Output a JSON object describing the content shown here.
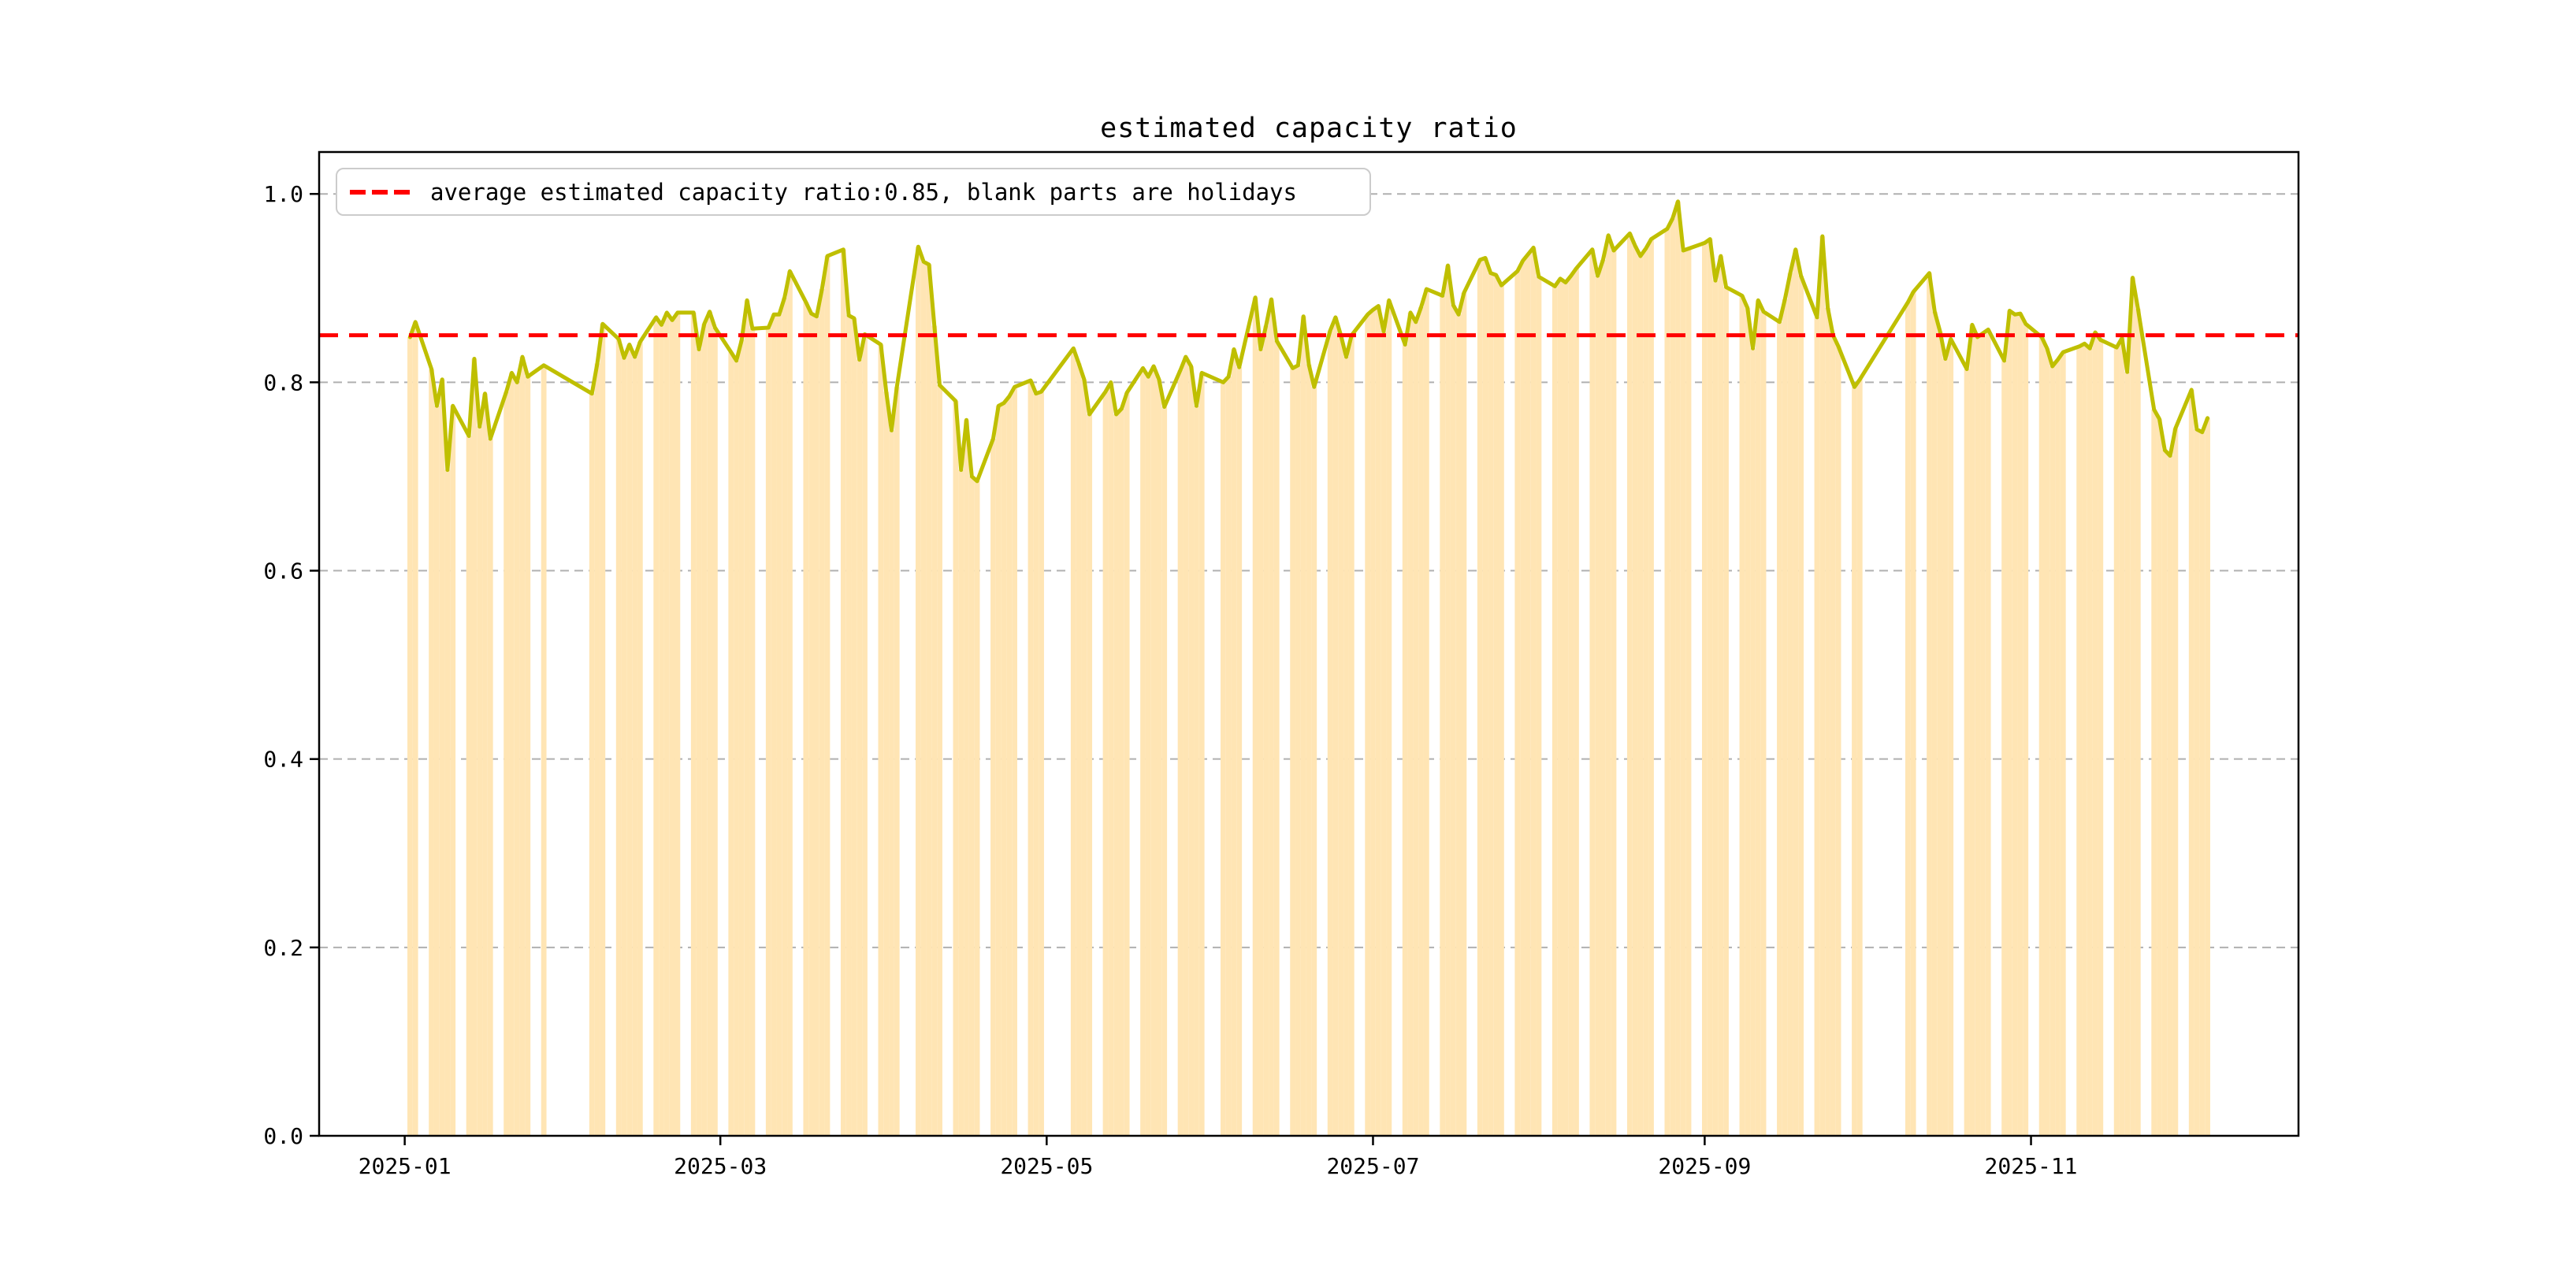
{
  "title": "estimated capacity ratio",
  "legend": {
    "label": "average estimated capacity ratio:0.85, blank parts are holidays"
  },
  "colors": {
    "bar_fill": "#ffe5b4",
    "line": "#bfbf00",
    "average_line": "#ff0000",
    "grid": "#b0b0b0",
    "axis": "#000000",
    "legend_border": "#cccccc",
    "background": "#ffffff"
  },
  "chart_data": {
    "type": "bar",
    "title": "estimated capacity ratio",
    "xlabel": "",
    "ylabel": "",
    "average_line_value": 0.85,
    "ylim": [
      0,
      1.0445
    ],
    "xlim": [
      "2024-12-16",
      "2025-12-21"
    ],
    "grid": "horizontal-dashed",
    "legend_position": "upper left",
    "y_ticks": [
      {
        "label": "0.0",
        "value": 0.0
      },
      {
        "label": "0.2",
        "value": 0.2
      },
      {
        "label": "0.4",
        "value": 0.4
      },
      {
        "label": "0.6",
        "value": 0.6
      },
      {
        "label": "0.8",
        "value": 0.8
      },
      {
        "label": "1.0",
        "value": 1.0
      }
    ],
    "x_ticks": [
      {
        "label": "2025-01",
        "date": "2025-01-01"
      },
      {
        "label": "2025-03",
        "date": "2025-03-01"
      },
      {
        "label": "2025-05",
        "date": "2025-05-01"
      },
      {
        "label": "2025-07",
        "date": "2025-07-01"
      },
      {
        "label": "2025-09",
        "date": "2025-09-01"
      },
      {
        "label": "2025-11",
        "date": "2025-11-01"
      }
    ],
    "series_note_visible": "blank parts are holidays",
    "days": [
      [
        "2025-01-02",
        0.848
      ],
      [
        "2025-01-03",
        0.864
      ],
      [
        "2025-01-06",
        0.814
      ],
      [
        "2025-01-07",
        0.775
      ],
      [
        "2025-01-08",
        0.803
      ],
      [
        "2025-01-09",
        0.707
      ],
      [
        "2025-01-10",
        0.775
      ],
      [
        "2025-01-13",
        0.743
      ],
      [
        "2025-01-14",
        0.825
      ],
      [
        "2025-01-15",
        0.753
      ],
      [
        "2025-01-16",
        0.788
      ],
      [
        "2025-01-17",
        0.74
      ],
      [
        "2025-01-20",
        0.79
      ],
      [
        "2025-01-21",
        0.81
      ],
      [
        "2025-01-22",
        0.8
      ],
      [
        "2025-01-23",
        0.827
      ],
      [
        "2025-01-24",
        0.806
      ],
      [
        "2025-01-27",
        0.818
      ],
      [
        "2025-02-05",
        0.788
      ],
      [
        "2025-02-06",
        0.82
      ],
      [
        "2025-02-07",
        0.862
      ],
      [
        "2025-02-10",
        0.846
      ],
      [
        "2025-02-11",
        0.826
      ],
      [
        "2025-02-12",
        0.84
      ],
      [
        "2025-02-13",
        0.827
      ],
      [
        "2025-02-14",
        0.843
      ],
      [
        "2025-02-17",
        0.869
      ],
      [
        "2025-02-18",
        0.861
      ],
      [
        "2025-02-19",
        0.874
      ],
      [
        "2025-02-20",
        0.866
      ],
      [
        "2025-02-21",
        0.874
      ],
      [
        "2025-02-24",
        0.874
      ],
      [
        "2025-02-25",
        0.835
      ],
      [
        "2025-02-26",
        0.862
      ],
      [
        "2025-02-27",
        0.875
      ],
      [
        "2025-02-28",
        0.858
      ],
      [
        "2025-03-03",
        0.832
      ],
      [
        "2025-03-04",
        0.823
      ],
      [
        "2025-03-05",
        0.845
      ],
      [
        "2025-03-06",
        0.887
      ],
      [
        "2025-03-07",
        0.857
      ],
      [
        "2025-03-10",
        0.858
      ],
      [
        "2025-03-11",
        0.872
      ],
      [
        "2025-03-12",
        0.872
      ],
      [
        "2025-03-13",
        0.89
      ],
      [
        "2025-03-14",
        0.918
      ],
      [
        "2025-03-17",
        0.885
      ],
      [
        "2025-03-18",
        0.873
      ],
      [
        "2025-03-19",
        0.87
      ],
      [
        "2025-03-20",
        0.899
      ],
      [
        "2025-03-21",
        0.934
      ],
      [
        "2025-03-24",
        0.941
      ],
      [
        "2025-03-25",
        0.871
      ],
      [
        "2025-03-26",
        0.868
      ],
      [
        "2025-03-27",
        0.824
      ],
      [
        "2025-03-28",
        0.851
      ],
      [
        "2025-03-31",
        0.84
      ],
      [
        "2025-04-01",
        0.79
      ],
      [
        "2025-04-02",
        0.749
      ],
      [
        "2025-04-03",
        0.795
      ],
      [
        "2025-04-07",
        0.944
      ],
      [
        "2025-04-08",
        0.928
      ],
      [
        "2025-04-09",
        0.925
      ],
      [
        "2025-04-10",
        0.86
      ],
      [
        "2025-04-11",
        0.797
      ],
      [
        "2025-04-14",
        0.78
      ],
      [
        "2025-04-15",
        0.707
      ],
      [
        "2025-04-16",
        0.76
      ],
      [
        "2025-04-17",
        0.7
      ],
      [
        "2025-04-18",
        0.695
      ],
      [
        "2025-04-21",
        0.74
      ],
      [
        "2025-04-22",
        0.775
      ],
      [
        "2025-04-23",
        0.778
      ],
      [
        "2025-04-24",
        0.785
      ],
      [
        "2025-04-25",
        0.795
      ],
      [
        "2025-04-28",
        0.802
      ],
      [
        "2025-04-29",
        0.788
      ],
      [
        "2025-04-30",
        0.79
      ],
      [
        "2025-05-06",
        0.836
      ],
      [
        "2025-05-07",
        0.82
      ],
      [
        "2025-05-08",
        0.803
      ],
      [
        "2025-05-09",
        0.766
      ],
      [
        "2025-05-12",
        0.79
      ],
      [
        "2025-05-13",
        0.8
      ],
      [
        "2025-05-14",
        0.766
      ],
      [
        "2025-05-15",
        0.772
      ],
      [
        "2025-05-16",
        0.789
      ],
      [
        "2025-05-19",
        0.815
      ],
      [
        "2025-05-20",
        0.806
      ],
      [
        "2025-05-21",
        0.817
      ],
      [
        "2025-05-22",
        0.803
      ],
      [
        "2025-05-23",
        0.774
      ],
      [
        "2025-05-26",
        0.813
      ],
      [
        "2025-05-27",
        0.827
      ],
      [
        "2025-05-28",
        0.817
      ],
      [
        "2025-05-29",
        0.775
      ],
      [
        "2025-05-30",
        0.81
      ],
      [
        "2025-06-03",
        0.8
      ],
      [
        "2025-06-04",
        0.806
      ],
      [
        "2025-06-05",
        0.835
      ],
      [
        "2025-06-06",
        0.816
      ],
      [
        "2025-06-09",
        0.89
      ],
      [
        "2025-06-10",
        0.835
      ],
      [
        "2025-06-11",
        0.86
      ],
      [
        "2025-06-12",
        0.888
      ],
      [
        "2025-06-13",
        0.844
      ],
      [
        "2025-06-16",
        0.815
      ],
      [
        "2025-06-17",
        0.818
      ],
      [
        "2025-06-18",
        0.87
      ],
      [
        "2025-06-19",
        0.819
      ],
      [
        "2025-06-20",
        0.795
      ],
      [
        "2025-06-23",
        0.855
      ],
      [
        "2025-06-24",
        0.869
      ],
      [
        "2025-06-25",
        0.85
      ],
      [
        "2025-06-26",
        0.827
      ],
      [
        "2025-06-27",
        0.85
      ],
      [
        "2025-06-30",
        0.872
      ],
      [
        "2025-07-01",
        0.877
      ],
      [
        "2025-07-02",
        0.881
      ],
      [
        "2025-07-03",
        0.854
      ],
      [
        "2025-07-04",
        0.887
      ],
      [
        "2025-07-07",
        0.84
      ],
      [
        "2025-07-08",
        0.874
      ],
      [
        "2025-07-09",
        0.864
      ],
      [
        "2025-07-10",
        0.88
      ],
      [
        "2025-07-11",
        0.899
      ],
      [
        "2025-07-14",
        0.892
      ],
      [
        "2025-07-15",
        0.924
      ],
      [
        "2025-07-16",
        0.882
      ],
      [
        "2025-07-17",
        0.872
      ],
      [
        "2025-07-18",
        0.895
      ],
      [
        "2025-07-21",
        0.93
      ],
      [
        "2025-07-22",
        0.932
      ],
      [
        "2025-07-23",
        0.916
      ],
      [
        "2025-07-24",
        0.914
      ],
      [
        "2025-07-25",
        0.903
      ],
      [
        "2025-07-28",
        0.918
      ],
      [
        "2025-07-29",
        0.929
      ],
      [
        "2025-07-30",
        0.936
      ],
      [
        "2025-07-31",
        0.943
      ],
      [
        "2025-08-01",
        0.912
      ],
      [
        "2025-08-04",
        0.902
      ],
      [
        "2025-08-05",
        0.91
      ],
      [
        "2025-08-06",
        0.906
      ],
      [
        "2025-08-07",
        0.913
      ],
      [
        "2025-08-08",
        0.921
      ],
      [
        "2025-08-11",
        0.941
      ],
      [
        "2025-08-12",
        0.913
      ],
      [
        "2025-08-13",
        0.93
      ],
      [
        "2025-08-14",
        0.956
      ],
      [
        "2025-08-15",
        0.94
      ],
      [
        "2025-08-18",
        0.958
      ],
      [
        "2025-08-19",
        0.945
      ],
      [
        "2025-08-20",
        0.934
      ],
      [
        "2025-08-21",
        0.942
      ],
      [
        "2025-08-22",
        0.952
      ],
      [
        "2025-08-25",
        0.963
      ],
      [
        "2025-08-26",
        0.974
      ],
      [
        "2025-08-27",
        0.992
      ],
      [
        "2025-08-28",
        0.94
      ],
      [
        "2025-08-29",
        0.942
      ],
      [
        "2025-09-01",
        0.948
      ],
      [
        "2025-09-02",
        0.952
      ],
      [
        "2025-09-03",
        0.908
      ],
      [
        "2025-09-04",
        0.934
      ],
      [
        "2025-09-05",
        0.901
      ],
      [
        "2025-09-08",
        0.892
      ],
      [
        "2025-09-09",
        0.879
      ],
      [
        "2025-09-10",
        0.836
      ],
      [
        "2025-09-11",
        0.887
      ],
      [
        "2025-09-12",
        0.875
      ],
      [
        "2025-09-15",
        0.864
      ],
      [
        "2025-09-16",
        0.888
      ],
      [
        "2025-09-17",
        0.916
      ],
      [
        "2025-09-18",
        0.941
      ],
      [
        "2025-09-19",
        0.913
      ],
      [
        "2025-09-22",
        0.869
      ],
      [
        "2025-09-23",
        0.955
      ],
      [
        "2025-09-24",
        0.879
      ],
      [
        "2025-09-25",
        0.85
      ],
      [
        "2025-09-26",
        0.838
      ],
      [
        "2025-09-29",
        0.795
      ],
      [
        "2025-09-30",
        0.803
      ],
      [
        "2025-10-09",
        0.885
      ],
      [
        "2025-10-10",
        0.896
      ],
      [
        "2025-10-13",
        0.916
      ],
      [
        "2025-10-14",
        0.875
      ],
      [
        "2025-10-15",
        0.854
      ],
      [
        "2025-10-16",
        0.825
      ],
      [
        "2025-10-17",
        0.846
      ],
      [
        "2025-10-20",
        0.814
      ],
      [
        "2025-10-21",
        0.861
      ],
      [
        "2025-10-22",
        0.848
      ],
      [
        "2025-10-23",
        0.852
      ],
      [
        "2025-10-24",
        0.856
      ],
      [
        "2025-10-27",
        0.823
      ],
      [
        "2025-10-28",
        0.876
      ],
      [
        "2025-10-29",
        0.872
      ],
      [
        "2025-10-30",
        0.873
      ],
      [
        "2025-10-31",
        0.862
      ],
      [
        "2025-11-03",
        0.848
      ],
      [
        "2025-11-04",
        0.836
      ],
      [
        "2025-11-05",
        0.817
      ],
      [
        "2025-11-06",
        0.824
      ],
      [
        "2025-11-07",
        0.832
      ],
      [
        "2025-11-10",
        0.838
      ],
      [
        "2025-11-11",
        0.841
      ],
      [
        "2025-11-12",
        0.836
      ],
      [
        "2025-11-13",
        0.853
      ],
      [
        "2025-11-14",
        0.845
      ],
      [
        "2025-11-17",
        0.837
      ],
      [
        "2025-11-18",
        0.847
      ],
      [
        "2025-11-19",
        0.811
      ],
      [
        "2025-11-20",
        0.911
      ],
      [
        "2025-11-21",
        0.878
      ],
      [
        "2025-11-24",
        0.771
      ],
      [
        "2025-11-25",
        0.761
      ],
      [
        "2025-11-26",
        0.728
      ],
      [
        "2025-11-27",
        0.722
      ],
      [
        "2025-11-28",
        0.751
      ],
      [
        "2025-12-01",
        0.792
      ],
      [
        "2025-12-02",
        0.75
      ],
      [
        "2025-12-03",
        0.747
      ],
      [
        "2025-12-04",
        0.762
      ]
    ]
  }
}
